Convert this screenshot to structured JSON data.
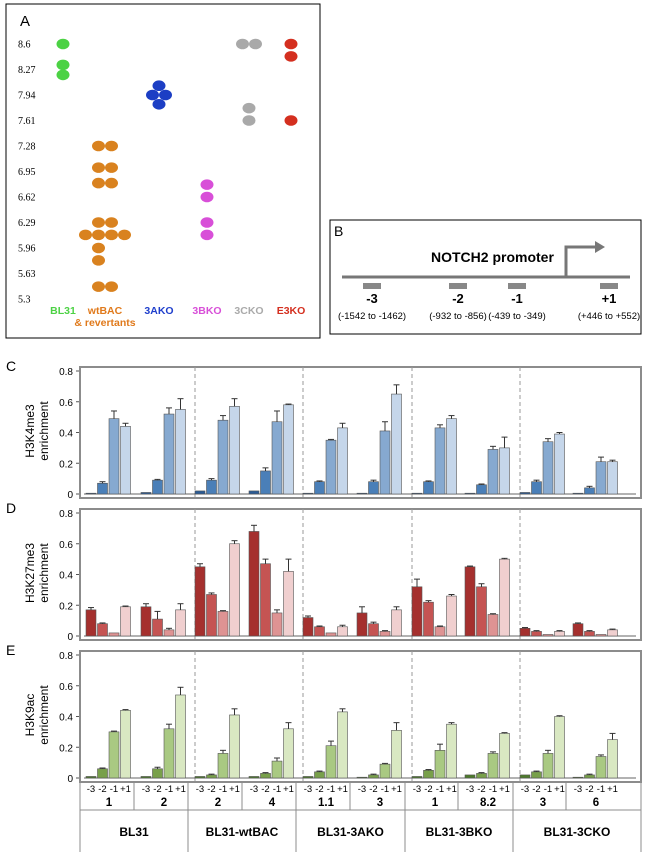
{
  "panelA": {
    "label": "A",
    "yticks": [
      "8.6",
      "8.27",
      "7.94",
      "7.61",
      "7.28",
      "6.95",
      "6.62",
      "6.29",
      "5.96",
      "5.63",
      "5.3"
    ],
    "groups": [
      {
        "name": "BL31",
        "name2": "",
        "color": "#4cd244",
        "label_color": "#4cd244",
        "dots": [
          [
            8.6,
            0
          ],
          [
            8.33,
            0
          ],
          [
            8.2,
            0
          ]
        ]
      },
      {
        "name": "wtBAC",
        "name2": "& revertants",
        "color": "#d9821f",
        "label_color": "#e07a1c",
        "dots": [
          [
            7.28,
            -1
          ],
          [
            7.28,
            1
          ],
          [
            7.0,
            -1
          ],
          [
            7.0,
            1
          ],
          [
            6.8,
            -1
          ],
          [
            6.8,
            1
          ],
          [
            6.29,
            -1
          ],
          [
            6.29,
            1
          ],
          [
            6.13,
            -3
          ],
          [
            6.13,
            -1
          ],
          [
            6.13,
            1
          ],
          [
            6.13,
            3
          ],
          [
            5.96,
            -1
          ],
          [
            5.8,
            -1
          ],
          [
            5.46,
            -1
          ],
          [
            5.46,
            1
          ]
        ]
      },
      {
        "name": "3AKO",
        "name2": "",
        "color": "#1c3ec4",
        "label_color": "#1f3fcc",
        "dots": [
          [
            8.06,
            0
          ],
          [
            7.94,
            -1
          ],
          [
            7.94,
            1
          ],
          [
            7.82,
            0
          ]
        ]
      },
      {
        "name": "3BKO",
        "name2": "",
        "color": "#d84fd8",
        "label_color": "#d84fd8",
        "dots": [
          [
            6.78,
            0
          ],
          [
            6.62,
            0
          ],
          [
            6.29,
            0
          ],
          [
            6.13,
            0
          ]
        ]
      },
      {
        "name": "3CKO",
        "name2": "",
        "color": "#a9a9a9",
        "label_color": "#aaaaaa",
        "dots": [
          [
            8.6,
            -1
          ],
          [
            8.6,
            1
          ],
          [
            7.77,
            0
          ],
          [
            7.61,
            0
          ]
        ]
      },
      {
        "name": "E3KO",
        "name2": "",
        "color": "#d42f1f",
        "label_color": "#d42f1f",
        "dots": [
          [
            8.6,
            0
          ],
          [
            8.44,
            0
          ],
          [
            7.61,
            0
          ]
        ]
      }
    ]
  },
  "panelB": {
    "label": "B",
    "title": "NOTCH2 promoter",
    "regions": [
      {
        "id": "-3",
        "range": "(-1542 to -1462)"
      },
      {
        "id": "-2",
        "range": "(-932 to -856)"
      },
      {
        "id": "-1",
        "range": "(-439 to -349)"
      },
      {
        "id": "+1",
        "range": "(+446 to +552)"
      }
    ]
  },
  "chart_data": [
    {
      "type": "bar",
      "panel": "C",
      "ylabel": "H3K4me3 enrichment",
      "ylim": [
        0,
        0.8
      ],
      "yticks": [
        "0",
        "0.2",
        "0.4",
        "0.6",
        "0.8"
      ],
      "colors": [
        "#2b5b95",
        "#4a7fb8",
        "#86a9d0",
        "#c5d6ea"
      ],
      "values": [
        [
          0.0,
          0.07,
          0.49,
          0.44
        ],
        [
          0.01,
          0.09,
          0.52,
          0.55
        ],
        [
          0.02,
          0.09,
          0.48,
          0.57
        ],
        [
          0.02,
          0.15,
          0.47,
          0.58
        ],
        [
          0.0,
          0.08,
          0.35,
          0.43
        ],
        [
          0.0,
          0.08,
          0.41,
          0.65
        ],
        [
          0.0,
          0.08,
          0.43,
          0.49
        ],
        [
          0.0,
          0.06,
          0.29,
          0.3
        ],
        [
          0.01,
          0.08,
          0.34,
          0.39
        ],
        [
          0.0,
          0.04,
          0.21,
          0.21
        ]
      ],
      "errors": [
        [
          0,
          0.01,
          0.05,
          0.02
        ],
        [
          0,
          0.005,
          0.04,
          0.07
        ],
        [
          0,
          0.01,
          0.03,
          0.05
        ],
        [
          0,
          0.02,
          0.07,
          0.005
        ],
        [
          0,
          0.005,
          0.005,
          0.03
        ],
        [
          0,
          0.01,
          0.06,
          0.06
        ],
        [
          0,
          0.005,
          0.02,
          0.02
        ],
        [
          0,
          0.005,
          0.02,
          0.07
        ],
        [
          0,
          0.01,
          0.02,
          0.01
        ],
        [
          0,
          0.01,
          0.03,
          0.01
        ]
      ]
    },
    {
      "type": "bar",
      "panel": "D",
      "ylabel": "H3K27me3 enrichment",
      "ylim": [
        0,
        0.8
      ],
      "yticks": [
        "0",
        "0.2",
        "0.4",
        "0.6",
        "0.8"
      ],
      "colors": [
        "#a5302e",
        "#c55453",
        "#de9393",
        "#f0cfcf"
      ],
      "values": [
        [
          0.17,
          0.08,
          0.02,
          0.19
        ],
        [
          0.19,
          0.11,
          0.04,
          0.17
        ],
        [
          0.45,
          0.27,
          0.16,
          0.6
        ],
        [
          0.68,
          0.47,
          0.15,
          0.42
        ],
        [
          0.12,
          0.06,
          0.02,
          0.06
        ],
        [
          0.15,
          0.08,
          0.03,
          0.17
        ],
        [
          0.32,
          0.22,
          0.06,
          0.26
        ],
        [
          0.45,
          0.32,
          0.14,
          0.5
        ],
        [
          0.05,
          0.03,
          0.01,
          0.03
        ],
        [
          0.08,
          0.03,
          0.01,
          0.04
        ]
      ],
      "errors": [
        [
          0.015,
          0.005,
          0,
          0.005
        ],
        [
          0.02,
          0.05,
          0.01,
          0.04
        ],
        [
          0.02,
          0.01,
          0.005,
          0.02
        ],
        [
          0.04,
          0.03,
          0.02,
          0.08
        ],
        [
          0.01,
          0.005,
          0,
          0.01
        ],
        [
          0.04,
          0.01,
          0.005,
          0.02
        ],
        [
          0.05,
          0.01,
          0.005,
          0.01
        ],
        [
          0.005,
          0.02,
          0.005,
          0.005
        ],
        [
          0.005,
          0.005,
          0,
          0.005
        ],
        [
          0.005,
          0.005,
          0,
          0.005
        ]
      ]
    },
    {
      "type": "bar",
      "panel": "E",
      "ylabel": "H3K9ac enrichment",
      "ylim": [
        0,
        0.8
      ],
      "yticks": [
        "0",
        "0.2",
        "0.4",
        "0.6",
        "0.8"
      ],
      "colors": [
        "#4d7a2b",
        "#78a04a",
        "#a9c982",
        "#d9e8c2"
      ],
      "values": [
        [
          0.01,
          0.06,
          0.3,
          0.44
        ],
        [
          0.01,
          0.06,
          0.32,
          0.54
        ],
        [
          0.01,
          0.02,
          0.16,
          0.41
        ],
        [
          0.01,
          0.03,
          0.11,
          0.32
        ],
        [
          0.01,
          0.04,
          0.21,
          0.43
        ],
        [
          0.0,
          0.02,
          0.09,
          0.31
        ],
        [
          0.01,
          0.05,
          0.18,
          0.35
        ],
        [
          0.02,
          0.03,
          0.16,
          0.29
        ],
        [
          0.02,
          0.04,
          0.16,
          0.4
        ],
        [
          0.0,
          0.02,
          0.14,
          0.25
        ]
      ],
      "errors": [
        [
          0,
          0.005,
          0.005,
          0.005
        ],
        [
          0,
          0.01,
          0.03,
          0.05
        ],
        [
          0,
          0.005,
          0.02,
          0.04
        ],
        [
          0,
          0.005,
          0.02,
          0.04
        ],
        [
          0,
          0.005,
          0.03,
          0.02
        ],
        [
          0,
          0.005,
          0.005,
          0.05
        ],
        [
          0,
          0.005,
          0.04,
          0.01
        ],
        [
          0,
          0.005,
          0.01,
          0.005
        ],
        [
          0,
          0.005,
          0.02,
          0.005
        ],
        [
          0,
          0.005,
          0.01,
          0.04
        ]
      ]
    }
  ],
  "panel_labels": [
    "C",
    "D",
    "E"
  ],
  "xaxis": {
    "tick_labels": [
      "-3",
      "-2",
      "-1",
      "+1"
    ],
    "clones": [
      "1",
      "2",
      "2",
      "4",
      "1.1",
      "3",
      "1",
      "8.2",
      "3",
      "6"
    ],
    "groups": [
      "BL31",
      "BL31-wtBAC",
      "BL31-3AKO",
      "BL31-3BKO",
      "BL31-3CKO"
    ]
  }
}
